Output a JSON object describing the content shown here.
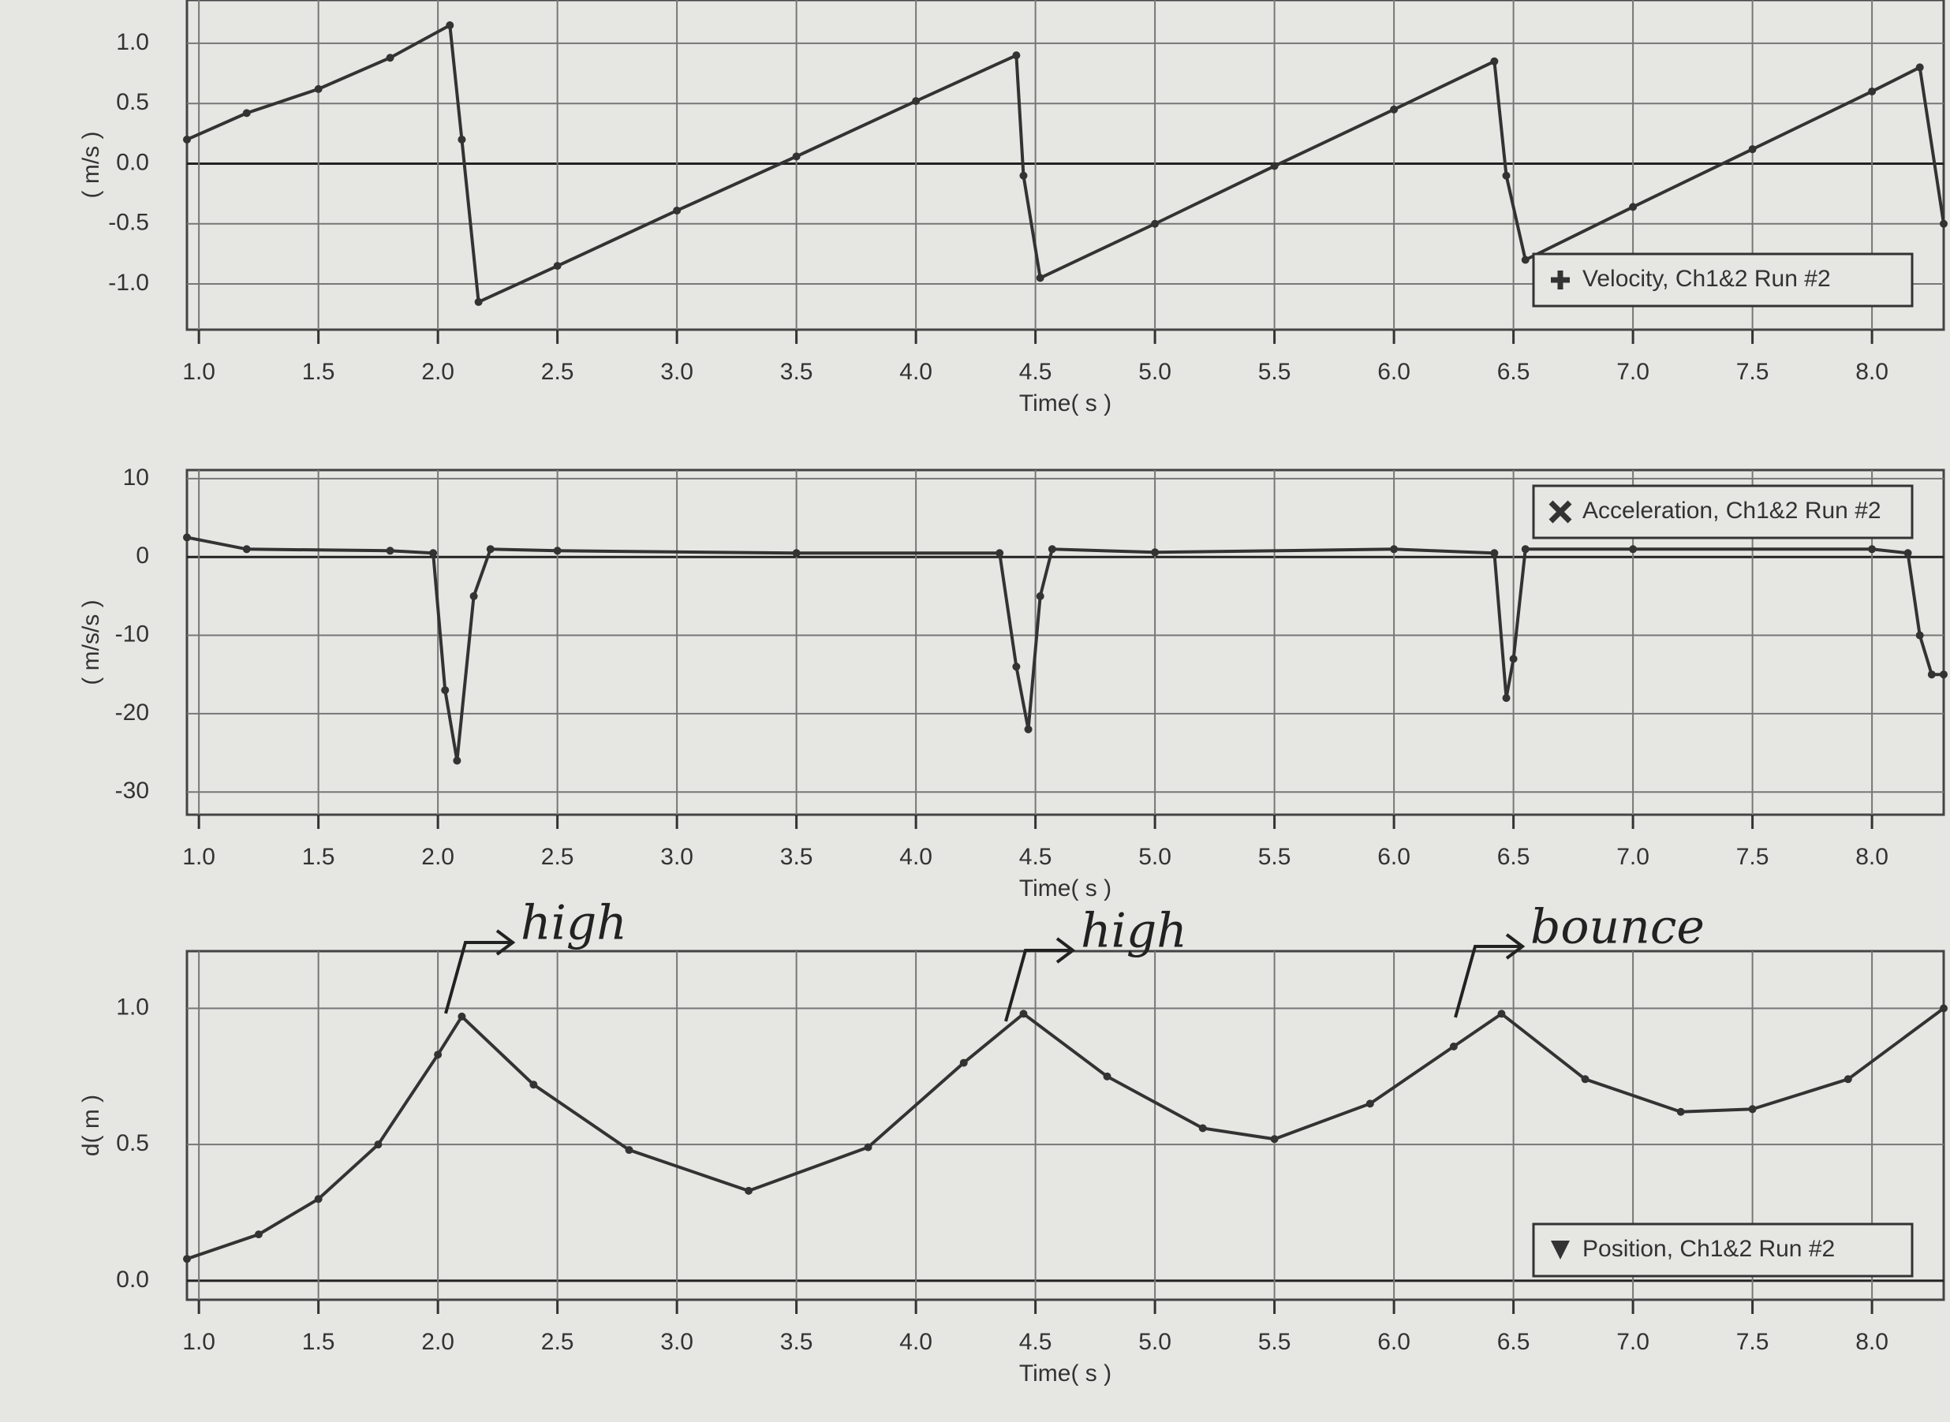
{
  "chart_data": [
    {
      "type": "line",
      "ylabel": "( m/s )",
      "xlabel": "Time( s )",
      "legend": "lower right",
      "grid": true,
      "xlim": [
        0.95,
        8.3
      ],
      "ylim": [
        -1.38,
        1.36
      ],
      "xticks": [
        {
          "value": 1,
          "label": "1.0"
        },
        1.5,
        {
          "value": 2,
          "label": "2.0"
        },
        2.5,
        {
          "value": 3,
          "label": "3.0"
        },
        3.5,
        {
          "value": 4,
          "label": "4.0"
        },
        4.5,
        {
          "value": 5,
          "label": "5.0"
        },
        5.5,
        {
          "value": 6,
          "label": "6.0"
        },
        6.5,
        {
          "value": 7,
          "label": "7.0"
        },
        7.5,
        {
          "value": 8,
          "label": "8.0"
        }
      ],
      "yticks": [
        {
          "value": 1,
          "label": "1.0"
        },
        0.5,
        {
          "value": 0,
          "label": "0.0"
        },
        -0.5,
        {
          "value": -1,
          "label": "-1.0"
        }
      ],
      "x": [
        0.95,
        1.2,
        1.5,
        1.8,
        2.05,
        2.1,
        2.17,
        2.5,
        3.0,
        3.5,
        4.0,
        4.42,
        4.45,
        4.52,
        5.0,
        5.5,
        6.0,
        6.42,
        6.47,
        6.55,
        7.0,
        7.5,
        8.0,
        8.2,
        8.3
      ],
      "series": [
        {
          "name": "Velocity, Ch1&2 Run #2",
          "color": "#333333",
          "values": [
            0.2,
            0.42,
            0.62,
            0.88,
            1.15,
            0.2,
            -1.15,
            -0.85,
            -0.39,
            0.06,
            0.52,
            0.9,
            -0.1,
            -0.95,
            -0.5,
            -0.02,
            0.45,
            0.85,
            -0.1,
            -0.8,
            -0.36,
            0.12,
            0.6,
            0.8,
            -0.5
          ]
        }
      ]
    },
    {
      "type": "line",
      "ylabel": "( m/s/s )",
      "xlabel": "Time( s )",
      "legend": "upper right",
      "grid": true,
      "xlim": [
        0.95,
        8.3
      ],
      "ylim": [
        -32.9,
        11.1
      ],
      "xticks": [
        {
          "value": 1,
          "label": "1.0"
        },
        1.5,
        {
          "value": 2,
          "label": "2.0"
        },
        2.5,
        {
          "value": 3,
          "label": "3.0"
        },
        3.5,
        {
          "value": 4,
          "label": "4.0"
        },
        4.5,
        {
          "value": 5,
          "label": "5.0"
        },
        5.5,
        {
          "value": 6,
          "label": "6.0"
        },
        6.5,
        {
          "value": 7,
          "label": "7.0"
        },
        7.5,
        {
          "value": 8,
          "label": "8.0"
        }
      ],
      "yticks": [
        10,
        0,
        -10,
        -20,
        -30
      ],
      "x": [
        0.95,
        1.2,
        1.8,
        1.98,
        2.03,
        2.08,
        2.15,
        2.22,
        2.5,
        3.5,
        4.35,
        4.42,
        4.47,
        4.52,
        4.57,
        5.0,
        6.0,
        6.42,
        6.47,
        6.5,
        6.55,
        7.0,
        8.0,
        8.15,
        8.2,
        8.25,
        8.3
      ],
      "series": [
        {
          "name": "Acceleration, Ch1&2 Run #2",
          "color": "#333333",
          "values": [
            2.5,
            1,
            0.8,
            0.5,
            -17,
            -26,
            -5,
            1,
            0.8,
            0.5,
            0.5,
            -14,
            -22,
            -5,
            1,
            0.6,
            1,
            0.5,
            -18,
            -13,
            1,
            1,
            1,
            0.5,
            -10,
            -15,
            -15
          ]
        }
      ]
    },
    {
      "type": "line",
      "ylabel": "d( m )",
      "xlabel": "Time( s )",
      "legend": "lower right",
      "grid": true,
      "xlim": [
        0.95,
        8.3
      ],
      "ylim": [
        -0.07,
        1.21
      ],
      "xticks": [
        {
          "value": 1,
          "label": "1.0"
        },
        1.5,
        {
          "value": 2,
          "label": "2.0"
        },
        2.5,
        {
          "value": 3,
          "label": "3.0"
        },
        3.5,
        {
          "value": 4,
          "label": "4.0"
        },
        4.5,
        {
          "value": 5,
          "label": "5.0"
        },
        5.5,
        {
          "value": 6,
          "label": "6.0"
        },
        6.5,
        {
          "value": 7,
          "label": "7.0"
        },
        7.5,
        {
          "value": 8,
          "label": "8.0"
        }
      ],
      "yticks": [
        {
          "value": 1,
          "label": "1.0"
        },
        0.5,
        {
          "value": 0,
          "label": "0.0"
        }
      ],
      "x": [
        0.95,
        1.25,
        1.5,
        1.75,
        2.0,
        2.1,
        2.4,
        2.8,
        3.3,
        3.8,
        4.2,
        4.45,
        4.8,
        5.2,
        5.5,
        5.9,
        6.25,
        6.45,
        6.8,
        7.2,
        7.5,
        7.9,
        8.3
      ],
      "series": [
        {
          "name": "Position, Ch1&2 Run #2",
          "color": "#333333",
          "values": [
            0.08,
            0.17,
            0.3,
            0.5,
            0.83,
            0.97,
            0.72,
            0.48,
            0.33,
            0.49,
            0.8,
            0.98,
            0.75,
            0.56,
            0.52,
            0.65,
            0.86,
            0.98,
            0.74,
            0.62,
            0.63,
            0.74,
            1.0
          ]
        }
      ],
      "annotations": [
        "high",
        "high",
        "bounce"
      ]
    }
  ]
}
